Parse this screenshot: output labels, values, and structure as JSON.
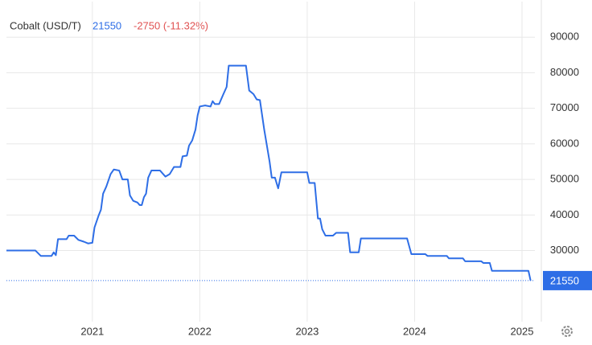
{
  "chart_data": {
    "type": "line",
    "title": "Cobalt (USD/T)",
    "last": 21550,
    "change_label": "-2750 (-11.32%)",
    "x": [
      2020.2,
      2020.47,
      2020.52,
      2020.62,
      2020.64,
      2020.66,
      2020.68,
      2020.76,
      2020.78,
      2020.83,
      2020.87,
      2020.92,
      2020.96,
      2021.0,
      2021.02,
      2021.06,
      2021.08,
      2021.1,
      2021.13,
      2021.17,
      2021.2,
      2021.25,
      2021.28,
      2021.33,
      2021.35,
      2021.38,
      2021.42,
      2021.44,
      2021.46,
      2021.48,
      2021.5,
      2021.52,
      2021.55,
      2021.63,
      2021.68,
      2021.72,
      2021.76,
      2021.82,
      2021.84,
      2021.88,
      2021.9,
      2021.93,
      2021.96,
      2021.98,
      2022.0,
      2022.05,
      2022.1,
      2022.12,
      2022.14,
      2022.18,
      2022.22,
      2022.25,
      2022.27,
      2022.43,
      2022.46,
      2022.5,
      2022.53,
      2022.56,
      2022.6,
      2022.65,
      2022.67,
      2022.7,
      2022.73,
      2022.76,
      2023.0,
      2023.02,
      2023.07,
      2023.1,
      2023.12,
      2023.14,
      2023.17,
      2023.24,
      2023.27,
      2023.38,
      2023.4,
      2023.48,
      2023.5,
      2023.93,
      2023.97,
      2024.1,
      2024.12,
      2024.3,
      2024.32,
      2024.45,
      2024.47,
      2024.62,
      2024.64,
      2024.7,
      2024.72,
      2025.06,
      2025.08
    ],
    "series": [
      {
        "name": "Cobalt",
        "color": "#2e6ee6",
        "values": [
          30000,
          30000,
          28500,
          28500,
          29500,
          28700,
          33200,
          33200,
          34200,
          34200,
          33000,
          32500,
          32000,
          32200,
          36500,
          40000,
          41500,
          46000,
          48000,
          51500,
          52800,
          52500,
          50000,
          50000,
          45500,
          44000,
          43500,
          42800,
          42800,
          45000,
          46000,
          50500,
          52500,
          52500,
          50800,
          51500,
          53500,
          53500,
          56500,
          56700,
          59500,
          61000,
          64000,
          68000,
          70500,
          70800,
          70500,
          72000,
          71200,
          71200,
          74000,
          76000,
          82000,
          82000,
          75000,
          74000,
          72500,
          72300,
          64000,
          55000,
          50500,
          50500,
          47500,
          52000,
          52000,
          49000,
          49000,
          39000,
          39000,
          36000,
          34200,
          34200,
          35000,
          35000,
          29500,
          29500,
          33400,
          33400,
          29000,
          29000,
          28500,
          28500,
          27800,
          27800,
          27000,
          27000,
          26500,
          26500,
          24300,
          24300,
          21550
        ]
      }
    ],
    "xlim": [
      2020.2,
      2025.12
    ],
    "xticks": [
      2021,
      2022,
      2023,
      2024,
      2025
    ],
    "ylim": [
      10000,
      100000
    ],
    "yticks": [
      30000,
      40000,
      50000,
      60000,
      70000,
      80000,
      90000
    ],
    "grid": true
  }
}
